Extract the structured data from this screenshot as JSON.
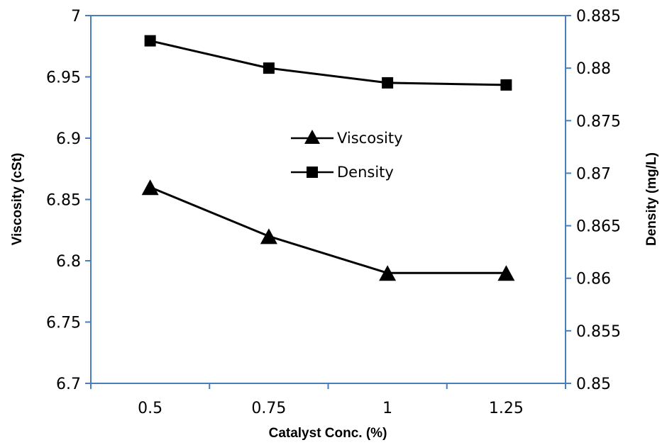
{
  "chart_data": {
    "type": "line",
    "title": "",
    "xlabel": "Catalyst Conc. (%)",
    "ylabel_left": "Viscosity (cSt)",
    "ylabel_right": "Density (mg/L)",
    "categories": [
      "0.5",
      "0.75",
      "1",
      "1.25"
    ],
    "y_left": {
      "min": 6.7,
      "max": 7,
      "step": 0.05,
      "ticks": [
        "6.7",
        "6.75",
        "6.8",
        "6.85",
        "6.9",
        "6.95",
        "7"
      ]
    },
    "y_right": {
      "min": 0.85,
      "max": 0.885,
      "step": 0.005,
      "ticks": [
        "0.85",
        "0.855",
        "0.86",
        "0.865",
        "0.87",
        "0.875",
        "0.88",
        "0.885"
      ]
    },
    "series": [
      {
        "name": "Viscosity",
        "axis": "left",
        "marker": "triangle",
        "values": [
          6.86,
          6.82,
          6.79,
          6.79
        ]
      },
      {
        "name": "Density",
        "axis": "right",
        "marker": "square",
        "values": [
          0.8826,
          0.88,
          0.8786,
          0.8784
        ]
      }
    ],
    "legend_position": "center",
    "grid": false,
    "colors": {
      "line": "#000000",
      "frame": "#4a7ebb"
    }
  }
}
